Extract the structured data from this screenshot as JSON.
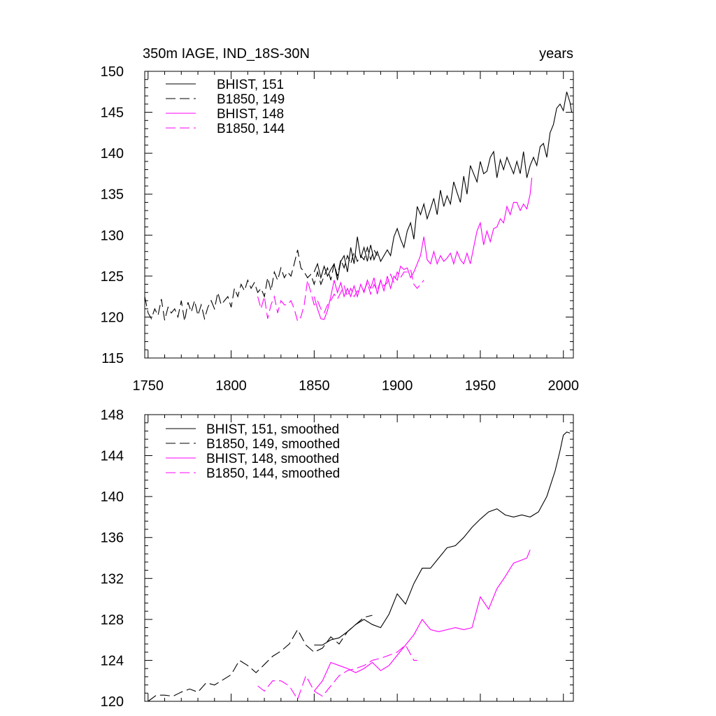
{
  "chart_data": [
    {
      "type": "line",
      "title": "350m IAGE, IND_18S-30N",
      "title_right": "years",
      "xlim": [
        1748,
        2006
      ],
      "ylim": [
        115,
        150
      ],
      "x_ticks": [
        1750,
        1800,
        1850,
        1900,
        1950,
        2000
      ],
      "y_ticks": [
        115,
        120,
        125,
        130,
        135,
        140,
        145,
        150
      ],
      "legend_position": "top-left",
      "series": [
        {
          "name": "BHIST, 151",
          "color": "#000000",
          "dash": "solid",
          "x": [
            1850,
            1852,
            1854,
            1856,
            1858,
            1860,
            1862,
            1864,
            1866,
            1868,
            1870,
            1872,
            1874,
            1876,
            1878,
            1880,
            1882,
            1884,
            1886,
            1888,
            1890,
            1892,
            1894,
            1896,
            1898,
            1900,
            1902,
            1904,
            1906,
            1908,
            1910,
            1912,
            1914,
            1916,
            1918,
            1920,
            1922,
            1924,
            1926,
            1928,
            1930,
            1932,
            1934,
            1936,
            1938,
            1940,
            1942,
            1944,
            1946,
            1948,
            1950,
            1952,
            1954,
            1956,
            1958,
            1960,
            1962,
            1964,
            1966,
            1968,
            1970,
            1972,
            1974,
            1976,
            1978,
            1980,
            1982,
            1984,
            1986,
            1988,
            1990,
            1992,
            1994,
            1996,
            1998,
            2000,
            2002,
            2004,
            2005
          ],
          "y": [
            125.5,
            126.5,
            124.8,
            126.2,
            125,
            125.8,
            126.5,
            124.5,
            126.8,
            127.5,
            125.5,
            128.5,
            126.5,
            129.8,
            127.2,
            128.5,
            126.8,
            128.8,
            127,
            128,
            126.8,
            127.5,
            128.2,
            127.5,
            129.8,
            130.8,
            129.5,
            128.5,
            130.5,
            131.5,
            129.5,
            133.5,
            132.5,
            133.8,
            132,
            133.2,
            134.5,
            132.5,
            135.5,
            133.5,
            134.8,
            133.8,
            136.5,
            135.2,
            134,
            137.2,
            135,
            138.5,
            137.5,
            136.5,
            139,
            137.5,
            137.8,
            139.5,
            140.2,
            137,
            139.2,
            138,
            139.5,
            138.5,
            137.5,
            139,
            137.5,
            140.2,
            137,
            138.5,
            139.5,
            138.5,
            140.8,
            141.2,
            139.5,
            142.5,
            143.5,
            145.5,
            146,
            145.2,
            147.5,
            146.2,
            145
          ]
        },
        {
          "name": "B1850, 149",
          "color": "#000000",
          "dash": "dashed",
          "x": [
            1748,
            1750,
            1752,
            1754,
            1756,
            1758,
            1760,
            1762,
            1764,
            1766,
            1768,
            1770,
            1772,
            1774,
            1776,
            1778,
            1780,
            1782,
            1784,
            1786,
            1788,
            1790,
            1792,
            1794,
            1796,
            1798,
            1800,
            1802,
            1804,
            1806,
            1808,
            1810,
            1812,
            1814,
            1816,
            1818,
            1820,
            1822,
            1824,
            1826,
            1828,
            1830,
            1832,
            1834,
            1836,
            1838,
            1840,
            1842,
            1844,
            1846,
            1848,
            1850,
            1852,
            1854,
            1856,
            1858,
            1860,
            1862,
            1864,
            1866,
            1868,
            1870,
            1872,
            1874,
            1876,
            1878,
            1880,
            1882,
            1884,
            1886,
            1888
          ],
          "y": [
            122.5,
            120.5,
            119.8,
            121,
            120.2,
            122.2,
            119.6,
            121.2,
            120.5,
            121,
            120,
            122,
            119.5,
            121.8,
            120.6,
            122,
            120.2,
            121.5,
            119.8,
            121.2,
            122,
            121,
            123,
            121.5,
            122,
            122.5,
            121.2,
            123.5,
            122.5,
            124,
            123.2,
            124.5,
            123.5,
            124.2,
            123,
            123.5,
            122.5,
            124.8,
            123.2,
            125.5,
            124.5,
            126,
            124.8,
            125.5,
            125,
            126.5,
            128.2,
            126,
            125.5,
            124.8,
            125.2,
            124,
            125.5,
            124,
            125,
            126,
            124.5,
            126.5,
            125,
            127,
            126,
            127.5,
            126.5,
            128,
            126.8,
            127.5,
            127,
            128.5,
            127,
            128.2,
            127.5
          ]
        },
        {
          "name": "BHIST, 148",
          "color": "#ff00ff",
          "dash": "solid",
          "x": [
            1850,
            1852,
            1854,
            1856,
            1858,
            1860,
            1862,
            1864,
            1866,
            1868,
            1870,
            1872,
            1874,
            1876,
            1878,
            1880,
            1882,
            1884,
            1886,
            1888,
            1890,
            1892,
            1894,
            1896,
            1898,
            1900,
            1902,
            1904,
            1906,
            1908,
            1910,
            1912,
            1914,
            1916,
            1918,
            1920,
            1922,
            1924,
            1926,
            1928,
            1930,
            1932,
            1934,
            1936,
            1938,
            1940,
            1942,
            1944,
            1946,
            1948,
            1950,
            1952,
            1954,
            1956,
            1958,
            1960,
            1962,
            1964,
            1966,
            1968,
            1970,
            1972,
            1974,
            1976,
            1978,
            1980,
            1981
          ],
          "y": [
            122.5,
            121,
            119.8,
            119.7,
            120.8,
            122.5,
            124.5,
            123,
            124.2,
            122.5,
            123.5,
            122.5,
            123.8,
            122.5,
            124,
            123,
            124.5,
            123.5,
            124.8,
            122.8,
            124.5,
            123.2,
            125,
            123.5,
            125,
            124.5,
            126.2,
            125.8,
            126,
            124.8,
            125.5,
            126.5,
            127.5,
            129.8,
            127,
            126.5,
            128,
            126.5,
            127.5,
            126.8,
            127.2,
            127.8,
            126.5,
            128,
            127,
            126.5,
            127.8,
            126.5,
            128.5,
            130.5,
            131.5,
            128.8,
            130.5,
            129.2,
            130.8,
            131,
            132,
            131.5,
            133.5,
            132.5,
            134,
            134,
            133,
            133.8,
            133.2,
            135,
            137
          ]
        },
        {
          "name": "B1850, 144",
          "color": "#ff00ff",
          "dash": "dashed",
          "x": [
            1816,
            1818,
            1820,
            1822,
            1824,
            1826,
            1828,
            1830,
            1832,
            1834,
            1836,
            1838,
            1840,
            1842,
            1844,
            1846,
            1848,
            1850,
            1852,
            1854,
            1856,
            1858,
            1860,
            1862,
            1864,
            1866,
            1868,
            1870,
            1872,
            1874,
            1876,
            1878,
            1880,
            1882,
            1884,
            1886,
            1888,
            1890,
            1892,
            1894,
            1896,
            1898,
            1900,
            1902,
            1904,
            1906,
            1908,
            1910,
            1912,
            1914,
            1916
          ],
          "y": [
            122.5,
            121,
            122.5,
            119.8,
            121.5,
            122.5,
            120.5,
            122,
            121.5,
            121.5,
            122,
            121,
            119.5,
            120,
            121.5,
            124.5,
            123,
            121.5,
            122,
            121,
            120.5,
            121.5,
            122,
            122.8,
            122.2,
            123,
            123.8,
            122.5,
            123.5,
            122.5,
            123.2,
            123,
            123.2,
            124.2,
            122.8,
            124,
            123.2,
            124.5,
            123.8,
            124.2,
            125.2,
            124.2,
            125.5,
            124.8,
            125.5,
            125.5,
            125.8,
            124,
            123.5,
            124,
            124.5
          ]
        }
      ]
    },
    {
      "type": "line",
      "xlim": [
        1748,
        2006
      ],
      "ylim": [
        120,
        148
      ],
      "x_ticks": [
        1750,
        1800,
        1850,
        1900,
        1950,
        2000
      ],
      "y_ticks": [
        120,
        124,
        128,
        132,
        136,
        140,
        144,
        148
      ],
      "legend_position": "top-left",
      "series": [
        {
          "name": "BHIST, 151, smoothed",
          "color": "#000000",
          "dash": "solid",
          "x": [
            1850,
            1855,
            1860,
            1865,
            1870,
            1875,
            1880,
            1885,
            1890,
            1895,
            1900,
            1905,
            1910,
            1915,
            1920,
            1925,
            1930,
            1935,
            1940,
            1945,
            1950,
            1955,
            1960,
            1965,
            1970,
            1975,
            1980,
            1985,
            1990,
            1995,
            1998,
            2000,
            2002,
            2004
          ],
          "y": [
            125.5,
            125.5,
            126,
            126.2,
            126.8,
            127.5,
            128,
            127.5,
            127.2,
            128.5,
            130.5,
            129.5,
            131.5,
            133,
            133,
            134,
            135,
            135.2,
            136,
            137,
            137.8,
            138.5,
            138.8,
            138.2,
            138,
            138.2,
            138,
            138.5,
            140,
            142.5,
            144.5,
            146,
            146.3,
            146.2
          ]
        },
        {
          "name": "B1850, 149, smoothed",
          "color": "#000000",
          "dash": "dashed",
          "x": [
            1750,
            1755,
            1760,
            1765,
            1770,
            1775,
            1780,
            1785,
            1790,
            1795,
            1800,
            1805,
            1810,
            1815,
            1820,
            1825,
            1830,
            1835,
            1840,
            1845,
            1850,
            1855,
            1860,
            1865,
            1870,
            1875,
            1880,
            1885
          ],
          "y": [
            120,
            120.6,
            120.6,
            120.5,
            120.9,
            121.2,
            120.9,
            121.8,
            121.6,
            122.1,
            122.6,
            124,
            123.5,
            122.8,
            123.6,
            124.4,
            124.9,
            125.6,
            127,
            125.5,
            124.8,
            125.2,
            126.3,
            125.6,
            126.8,
            127.5,
            128.2,
            128.4
          ]
        },
        {
          "name": "BHIST, 148, smoothed",
          "color": "#ff00ff",
          "dash": "solid",
          "x": [
            1850,
            1855,
            1860,
            1865,
            1870,
            1875,
            1880,
            1885,
            1890,
            1895,
            1900,
            1905,
            1910,
            1915,
            1920,
            1925,
            1930,
            1935,
            1940,
            1945,
            1950,
            1955,
            1960,
            1965,
            1970,
            1975,
            1978,
            1980
          ],
          "y": [
            121,
            122,
            123.8,
            123.5,
            123.2,
            122.8,
            123.2,
            123.8,
            123,
            123.5,
            124.5,
            125.5,
            126.5,
            128,
            127,
            126.8,
            127,
            127.2,
            127,
            127.2,
            130.2,
            129,
            131,
            132.2,
            133.5,
            133.8,
            134,
            134.8
          ]
        },
        {
          "name": "B1850, 144, smoothed",
          "color": "#ff00ff",
          "dash": "dashed",
          "x": [
            1816,
            1820,
            1825,
            1830,
            1835,
            1840,
            1845,
            1850,
            1855,
            1860,
            1865,
            1870,
            1875,
            1880,
            1885,
            1890,
            1895,
            1900,
            1905,
            1910,
            1912
          ],
          "y": [
            121.5,
            121,
            122,
            122,
            121.5,
            120.2,
            122.5,
            121,
            120.5,
            121.5,
            122.5,
            123,
            123.2,
            123.5,
            124,
            124.2,
            124.5,
            124.8,
            125.5,
            124,
            124
          ]
        }
      ]
    }
  ]
}
